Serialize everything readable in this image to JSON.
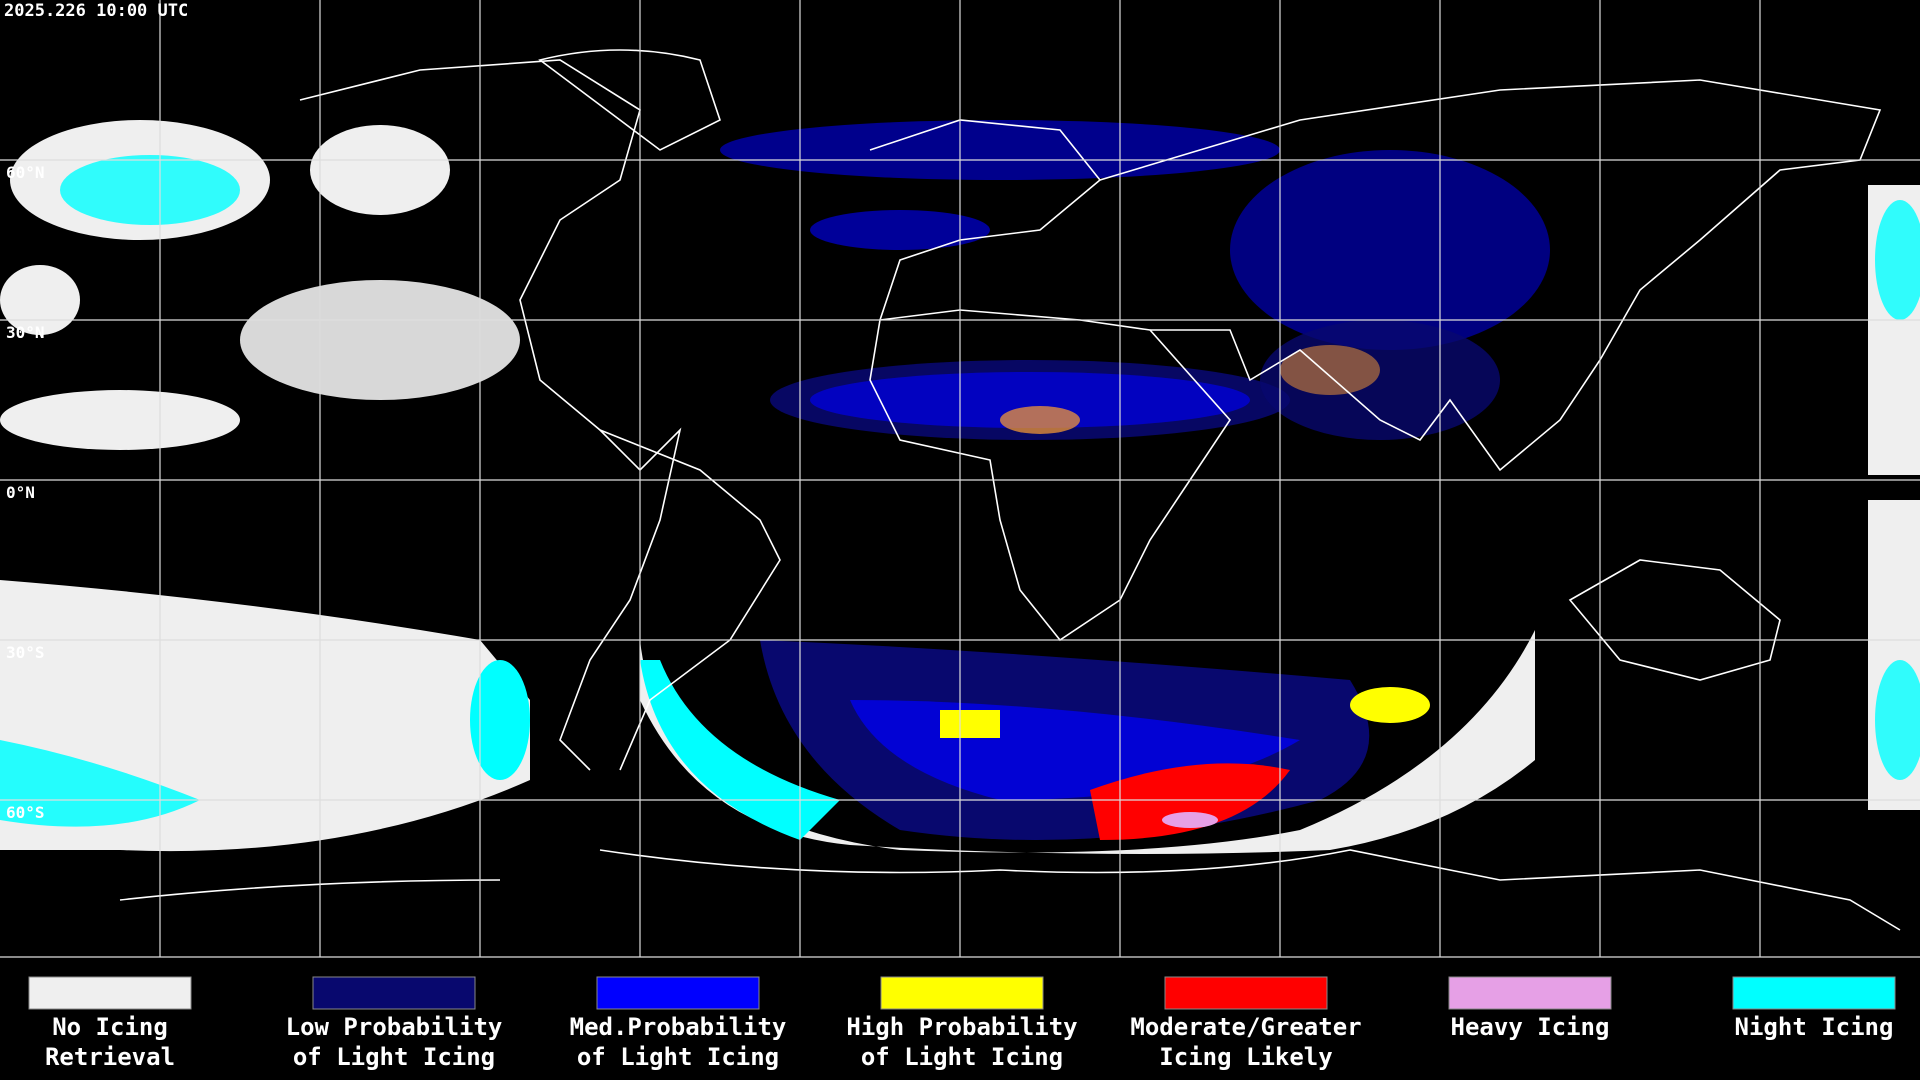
{
  "timestamp": "2025.226 10:00 UTC",
  "latitude_labels": [
    "60°N",
    "30°N",
    "0°N",
    "30°S",
    "60°S"
  ],
  "legend": [
    {
      "lines": [
        "No Icing",
        "Retrieval"
      ],
      "color": "#efefef"
    },
    {
      "lines": [
        "Low Probability",
        "of Light Icing"
      ],
      "color": "#08086e"
    },
    {
      "lines": [
        "Med.Probability",
        "of Light Icing"
      ],
      "color": "#0000ff"
    },
    {
      "lines": [
        "High Probability",
        "of Light Icing"
      ],
      "color": "#ffff00"
    },
    {
      "lines": [
        "Moderate/Greater",
        "Icing Likely"
      ],
      "color": "#ff0000"
    },
    {
      "lines": [
        "Heavy Icing"
      ],
      "color": "#e6a0e6"
    },
    {
      "lines": [
        "Night Icing"
      ],
      "color": "#00ffff"
    }
  ]
}
